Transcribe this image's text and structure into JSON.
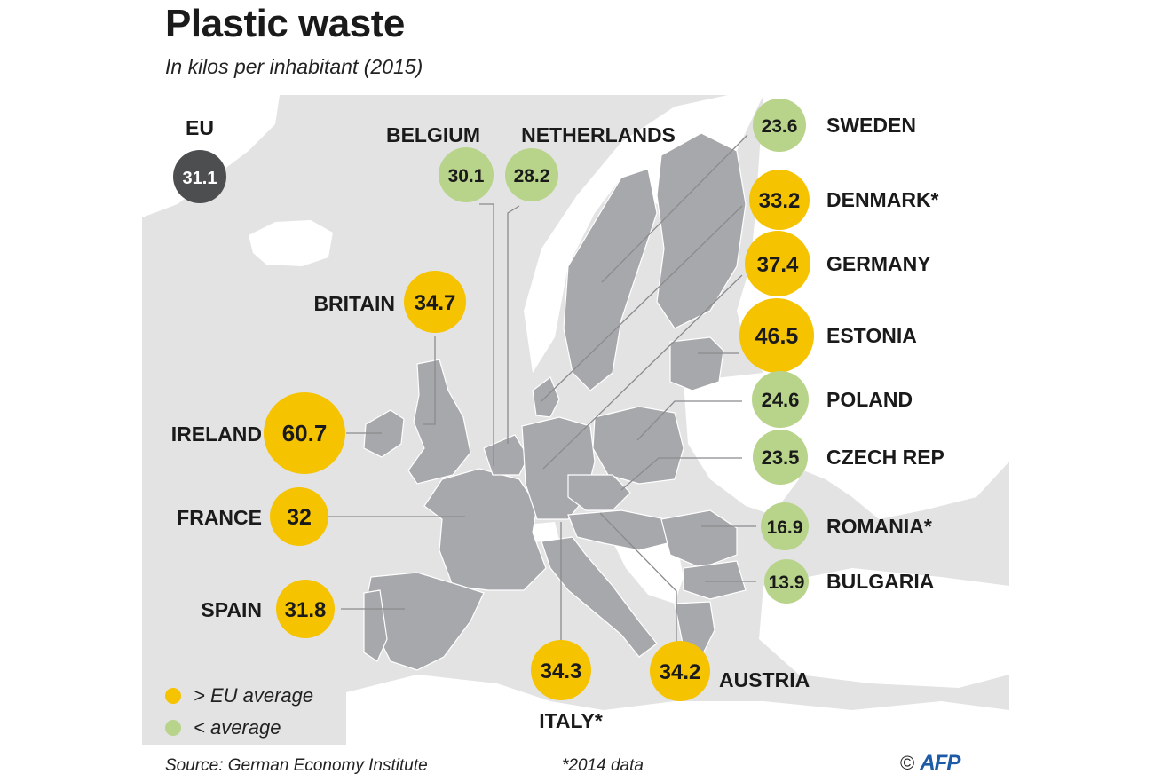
{
  "title": "Plastic waste",
  "subtitle": "In kilos per inhabitant (2015)",
  "colors": {
    "above": "#f6c300",
    "below": "#b8d48b",
    "eu": "#4d4e50",
    "sea": "#e3e3e4",
    "land": "#ffffff",
    "eu_land": "#a7a8ab"
  },
  "eu": {
    "label": "EU",
    "value": "31.1"
  },
  "countries": [
    {
      "name": "BELGIUM",
      "value": "30.1",
      "status": "below"
    },
    {
      "name": "NETHERLANDS",
      "value": "28.2",
      "status": "below"
    },
    {
      "name": "SWEDEN",
      "value": "23.6",
      "status": "below"
    },
    {
      "name": "DENMARK*",
      "value": "33.2",
      "status": "above"
    },
    {
      "name": "GERMANY",
      "value": "37.4",
      "status": "above"
    },
    {
      "name": "ESTONIA",
      "value": "46.5",
      "status": "above"
    },
    {
      "name": "POLAND",
      "value": "24.6",
      "status": "below"
    },
    {
      "name": "CZECH REP",
      "value": "23.5",
      "status": "below"
    },
    {
      "name": "ROMANIA*",
      "value": "16.9",
      "status": "below"
    },
    {
      "name": "BULGARIA",
      "value": "13.9",
      "status": "below"
    },
    {
      "name": "BRITAIN",
      "value": "34.7",
      "status": "above"
    },
    {
      "name": "IRELAND",
      "value": "60.7",
      "status": "above"
    },
    {
      "name": "FRANCE",
      "value": "32",
      "status": "above"
    },
    {
      "name": "SPAIN",
      "value": "31.8",
      "status": "above"
    },
    {
      "name": "ITALY*",
      "value": "34.3",
      "status": "above"
    },
    {
      "name": "AUSTRIA",
      "value": "34.2",
      "status": "above"
    }
  ],
  "legend": {
    "above": "> EU average",
    "below": "< average"
  },
  "source": "Source: German Economy Institute",
  "note": "*2014 data",
  "credit": {
    "copyright": "©",
    "logo": "AFP"
  }
}
